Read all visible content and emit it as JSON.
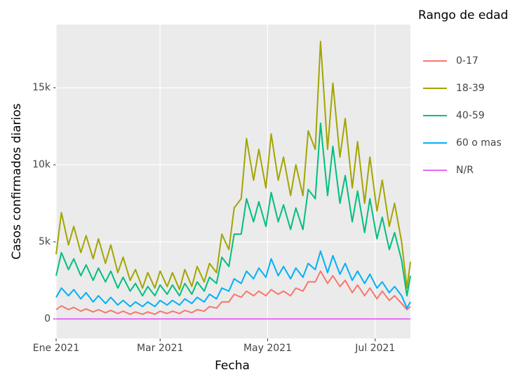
{
  "chart_data": {
    "type": "line",
    "x_label": "Fecha",
    "y_label": "Casos confirmados diarios",
    "legend_title": "Rango de edad",
    "x": [
      0,
      3,
      7,
      10,
      14,
      17,
      21,
      24,
      28,
      31,
      35,
      38,
      42,
      45,
      49,
      52,
      56,
      59,
      63,
      66,
      70,
      73,
      77,
      80,
      84,
      87,
      91,
      94,
      98,
      101,
      105,
      108,
      112,
      115,
      119,
      122,
      126,
      129,
      133,
      136,
      140,
      143,
      147,
      150,
      154,
      157,
      161,
      164,
      168,
      171,
      175,
      178,
      182,
      185,
      189,
      192,
      196,
      199,
      201
    ],
    "xlim": [
      0,
      201
    ],
    "xticks": [
      {
        "value": 0,
        "label": "Ene 2021"
      },
      {
        "value": 59,
        "label": "Mar 2021"
      },
      {
        "value": 120,
        "label": "May 2021"
      },
      {
        "value": 181,
        "label": "Jul 2021"
      }
    ],
    "ylim": [
      -1270,
      19100
    ],
    "yticks": [
      0,
      {
        "value": 5000,
        "label": "5k"
      },
      {
        "value": 10000,
        "label": "10k"
      },
      {
        "value": 15000,
        "label": "15k"
      }
    ],
    "grid": true,
    "series": [
      {
        "name": "0-17",
        "color": "#F8766D",
        "values": [
          600,
          850,
          600,
          750,
          500,
          650,
          450,
          600,
          400,
          550,
          350,
          500,
          300,
          450,
          300,
          450,
          300,
          500,
          350,
          500,
          350,
          550,
          400,
          600,
          500,
          800,
          700,
          1100,
          1100,
          1600,
          1400,
          1800,
          1500,
          1800,
          1500,
          1900,
          1600,
          1800,
          1500,
          2000,
          1800,
          2400,
          2400,
          3100,
          2300,
          2800,
          2100,
          2500,
          1700,
          2200,
          1500,
          2000,
          1300,
          1800,
          1200,
          1500,
          1000,
          600,
          800
        ]
      },
      {
        "name": "18-39",
        "color": "#A3A500",
        "values": [
          4200,
          6900,
          4800,
          6000,
          4300,
          5400,
          3900,
          5200,
          3600,
          4800,
          3000,
          4000,
          2500,
          3200,
          2000,
          3000,
          2000,
          3100,
          2100,
          3000,
          1900,
          3200,
          2100,
          3400,
          2400,
          3600,
          3000,
          5500,
          4500,
          7200,
          7800,
          11700,
          9000,
          11000,
          8500,
          12000,
          9000,
          10500,
          8000,
          10000,
          8000,
          12200,
          11000,
          18000,
          11000,
          15300,
          10500,
          13000,
          8500,
          11500,
          7500,
          10500,
          7000,
          9000,
          6000,
          7500,
          5000,
          2000,
          3700
        ]
      },
      {
        "name": "40-59",
        "color": "#00BF7D",
        "values": [
          2800,
          4300,
          3200,
          3900,
          2800,
          3500,
          2500,
          3300,
          2400,
          3100,
          2000,
          2700,
          1800,
          2300,
          1500,
          2100,
          1500,
          2200,
          1600,
          2200,
          1500,
          2300,
          1600,
          2400,
          1800,
          2700,
          2300,
          4000,
          3400,
          5500,
          5500,
          7800,
          6300,
          7600,
          6000,
          8200,
          6300,
          7400,
          5800,
          7200,
          5800,
          8400,
          7800,
          12700,
          8000,
          11200,
          7500,
          9300,
          6300,
          8300,
          5600,
          7800,
          5200,
          6600,
          4500,
          5600,
          3800,
          1500,
          2800
        ]
      },
      {
        "name": "60 o mas",
        "color": "#00B0F6",
        "values": [
          1400,
          2000,
          1500,
          1900,
          1300,
          1700,
          1100,
          1500,
          1000,
          1400,
          900,
          1200,
          800,
          1100,
          800,
          1100,
          800,
          1200,
          900,
          1200,
          900,
          1300,
          1000,
          1400,
          1100,
          1600,
          1300,
          2000,
          1800,
          2600,
          2300,
          3100,
          2600,
          3300,
          2700,
          3900,
          2800,
          3400,
          2600,
          3300,
          2700,
          3600,
          3200,
          4400,
          3000,
          4100,
          2900,
          3600,
          2500,
          3100,
          2300,
          2900,
          2000,
          2400,
          1700,
          2100,
          1500,
          700,
          1100
        ]
      },
      {
        "name": "N/R",
        "color": "#E76BF3",
        "values": [
          0,
          0,
          0,
          0,
          0,
          0,
          0,
          0,
          0,
          0,
          0,
          0,
          0,
          0,
          0,
          0,
          0,
          0,
          0,
          0,
          0,
          0,
          0,
          0,
          0,
          0,
          0,
          0,
          0,
          0,
          0,
          0,
          0,
          0,
          0,
          0,
          0,
          0,
          0,
          0,
          0,
          0,
          0,
          0,
          0,
          0,
          0,
          0,
          0,
          0,
          0,
          0,
          0,
          0,
          0,
          0,
          0,
          0,
          0
        ]
      }
    ]
  }
}
